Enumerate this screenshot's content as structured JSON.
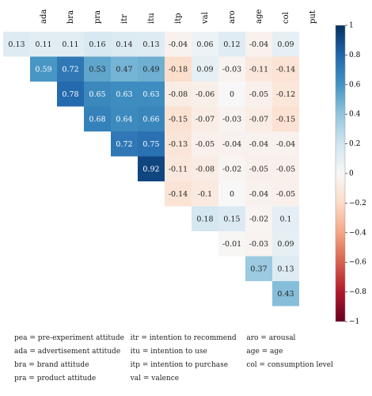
{
  "chart_data": {
    "type": "heatmap",
    "title": "",
    "columns": [
      "ada",
      "bra",
      "pra",
      "itr",
      "itu",
      "itp",
      "val",
      "aro",
      "age",
      "col",
      "put"
    ],
    "rows": [
      {
        "label": "pea",
        "start": 0,
        "values": [
          0.13,
          0.11,
          0.11,
          0.16,
          0.14,
          0.13,
          -0.04,
          0.06,
          0.12,
          -0.04,
          0.09
        ]
      },
      {
        "label": "ada",
        "start": 1,
        "values": [
          0.59,
          0.72,
          0.53,
          0.47,
          0.49,
          -0.18,
          0.09,
          -0.03,
          -0.11,
          -0.14
        ]
      },
      {
        "label": "bra",
        "start": 2,
        "values": [
          0.78,
          0.65,
          0.63,
          0.63,
          -0.08,
          -0.06,
          0,
          -0.05,
          -0.12
        ]
      },
      {
        "label": "pra",
        "start": 3,
        "values": [
          0.68,
          0.64,
          0.66,
          -0.15,
          -0.07,
          -0.03,
          -0.07,
          -0.15
        ]
      },
      {
        "label": "itr",
        "start": 4,
        "values": [
          0.72,
          0.75,
          -0.13,
          -0.05,
          -0.04,
          -0.04,
          -0.04
        ]
      },
      {
        "label": "itu",
        "start": 5,
        "values": [
          0.92,
          -0.11,
          -0.08,
          -0.02,
          -0.05,
          -0.05
        ]
      },
      {
        "label": "itp",
        "start": 6,
        "values": [
          -0.14,
          -0.1,
          0,
          -0.04,
          -0.05
        ]
      },
      {
        "label": "val",
        "start": 7,
        "values": [
          0.18,
          0.15,
          -0.02,
          0.1
        ]
      },
      {
        "label": "aro",
        "start": 8,
        "values": [
          -0.01,
          -0.03,
          0.09
        ]
      },
      {
        "label": "age",
        "start": 9,
        "values": [
          0.37,
          0.13
        ]
      },
      {
        "label": "col",
        "start": 10,
        "values": [
          0.43
        ]
      }
    ],
    "colorbar": {
      "range": [
        -1,
        1
      ],
      "ticks": [
        "1",
        "0.8",
        "0.6",
        "0.4",
        "0.2",
        "0",
        "−0.2",
        "−0.4",
        "−0.6",
        "−0.8",
        "−1"
      ]
    },
    "colors": {
      "negative": "#67001f",
      "neutral": "#f7f7f7",
      "positive": "#053061"
    }
  },
  "legend": [
    [
      "pea = pre-experiment attitude",
      "itr = intention to recommend",
      "aro = arousal"
    ],
    [
      "ada = advertisement attitude",
      "itu = intention to use",
      "age = age"
    ],
    [
      "bra = brand attitude",
      "itp = intention to purchase",
      "col = consumption level"
    ],
    [
      "pra = product attitude",
      "val = valence",
      ""
    ]
  ]
}
